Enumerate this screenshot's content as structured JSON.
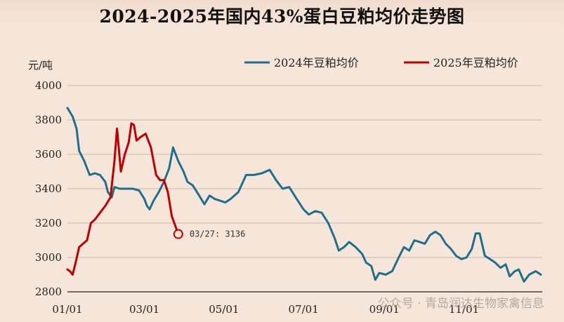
{
  "chart_data": {
    "type": "line",
    "title": "2024-2025年国内43%蛋白豆粕均价走势图",
    "ylabel": "元/吨",
    "ylim": [
      2800,
      4000
    ],
    "yticks": [
      2800,
      3000,
      3200,
      3400,
      3600,
      3800,
      4000
    ],
    "xlim": [
      "01/01",
      "12/31"
    ],
    "xticks": [
      "01/01",
      "03/01",
      "05/01",
      "07/01",
      "09/01",
      "11/01"
    ],
    "grid": "horizontal",
    "legend_position": "top-right",
    "colors": {
      "2024": "#1f6f8b",
      "2025": "#c00000"
    },
    "series": [
      {
        "name": "2024年豆粕均价",
        "color": "#1f6f8b",
        "points": [
          [
            "01/01",
            3870
          ],
          [
            "01/05",
            3820
          ],
          [
            "01/08",
            3750
          ],
          [
            "01/10",
            3620
          ],
          [
            "01/14",
            3560
          ],
          [
            "01/18",
            3480
          ],
          [
            "01/22",
            3490
          ],
          [
            "01/26",
            3480
          ],
          [
            "01/30",
            3440
          ],
          [
            "02/01",
            3380
          ],
          [
            "02/04",
            3350
          ],
          [
            "02/06",
            3410
          ],
          [
            "02/10",
            3400
          ],
          [
            "02/15",
            3400
          ],
          [
            "02/20",
            3400
          ],
          [
            "02/25",
            3390
          ],
          [
            "03/01",
            3340
          ],
          [
            "03/03",
            3300
          ],
          [
            "03/05",
            3280
          ],
          [
            "03/08",
            3330
          ],
          [
            "03/12",
            3380
          ],
          [
            "03/16",
            3440
          ],
          [
            "03/20",
            3520
          ],
          [
            "03/23",
            3640
          ],
          [
            "03/27",
            3560
          ],
          [
            "03/31",
            3500
          ],
          [
            "04/03",
            3440
          ],
          [
            "04/07",
            3420
          ],
          [
            "04/12",
            3360
          ],
          [
            "04/16",
            3310
          ],
          [
            "04/20",
            3360
          ],
          [
            "04/24",
            3340
          ],
          [
            "04/28",
            3330
          ],
          [
            "05/02",
            3320
          ],
          [
            "05/06",
            3340
          ],
          [
            "05/12",
            3380
          ],
          [
            "05/18",
            3480
          ],
          [
            "05/24",
            3480
          ],
          [
            "05/30",
            3490
          ],
          [
            "06/05",
            3510
          ],
          [
            "06/10",
            3450
          ],
          [
            "06/15",
            3400
          ],
          [
            "06/20",
            3410
          ],
          [
            "06/25",
            3350
          ],
          [
            "07/01",
            3280
          ],
          [
            "07/05",
            3250
          ],
          [
            "07/10",
            3270
          ],
          [
            "07/15",
            3260
          ],
          [
            "07/20",
            3200
          ],
          [
            "07/25",
            3110
          ],
          [
            "07/28",
            3040
          ],
          [
            "08/01",
            3060
          ],
          [
            "08/05",
            3090
          ],
          [
            "08/10",
            3060
          ],
          [
            "08/15",
            3020
          ],
          [
            "08/18",
            2970
          ],
          [
            "08/22",
            2950
          ],
          [
            "08/25",
            2870
          ],
          [
            "08/28",
            2910
          ],
          [
            "09/02",
            2900
          ],
          [
            "09/07",
            2920
          ],
          [
            "09/12",
            3000
          ],
          [
            "09/16",
            3060
          ],
          [
            "09/20",
            3040
          ],
          [
            "09/24",
            3100
          ],
          [
            "09/28",
            3090
          ],
          [
            "10/02",
            3080
          ],
          [
            "10/06",
            3130
          ],
          [
            "10/10",
            3150
          ],
          [
            "10/14",
            3130
          ],
          [
            "10/18",
            3080
          ],
          [
            "10/22",
            3050
          ],
          [
            "10/26",
            3010
          ],
          [
            "10/30",
            2990
          ],
          [
            "11/03",
            3000
          ],
          [
            "11/07",
            3050
          ],
          [
            "11/10",
            3140
          ],
          [
            "11/13",
            3140
          ],
          [
            "11/17",
            3010
          ],
          [
            "11/21",
            2990
          ],
          [
            "11/25",
            2970
          ],
          [
            "11/29",
            2940
          ],
          [
            "12/03",
            2960
          ],
          [
            "12/06",
            2890
          ],
          [
            "12/10",
            2920
          ],
          [
            "12/13",
            2930
          ],
          [
            "12/17",
            2860
          ],
          [
            "12/21",
            2900
          ],
          [
            "12/26",
            2920
          ],
          [
            "12/30",
            2900
          ]
        ]
      },
      {
        "name": "2025年豆粕均价",
        "color": "#c00000",
        "points": [
          [
            "01/01",
            2930
          ],
          [
            "01/03",
            2920
          ],
          [
            "01/05",
            2900
          ],
          [
            "01/07",
            2960
          ],
          [
            "01/10",
            3060
          ],
          [
            "01/13",
            3080
          ],
          [
            "01/16",
            3100
          ],
          [
            "01/19",
            3200
          ],
          [
            "01/22",
            3220
          ],
          [
            "01/26",
            3260
          ],
          [
            "01/30",
            3300
          ],
          [
            "02/03",
            3350
          ],
          [
            "02/06",
            3560
          ],
          [
            "02/08",
            3750
          ],
          [
            "02/11",
            3500
          ],
          [
            "02/14",
            3600
          ],
          [
            "02/17",
            3670
          ],
          [
            "02/19",
            3780
          ],
          [
            "02/21",
            3770
          ],
          [
            "02/23",
            3680
          ],
          [
            "02/26",
            3700
          ],
          [
            "03/02",
            3720
          ],
          [
            "03/06",
            3640
          ],
          [
            "03/10",
            3480
          ],
          [
            "03/13",
            3450
          ],
          [
            "03/16",
            3450
          ],
          [
            "03/19",
            3380
          ],
          [
            "03/22",
            3240
          ],
          [
            "03/27",
            3136
          ]
        ]
      }
    ],
    "annotations": [
      {
        "series": "2025年豆粕均价",
        "x": "03/27",
        "y": 3136,
        "text": "03/27: 3136"
      }
    ],
    "watermark": "公众号 · 青岛润达生物家禽信息"
  }
}
